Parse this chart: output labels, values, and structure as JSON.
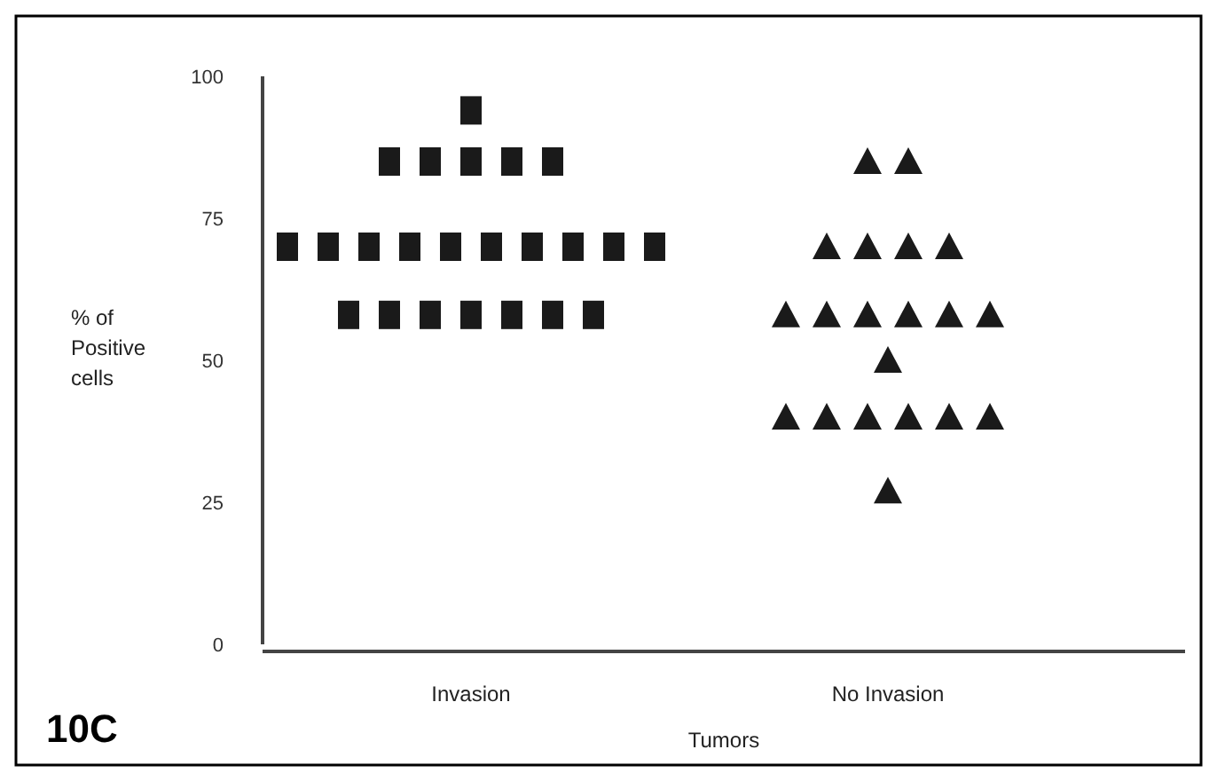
{
  "chart_data": {
    "type": "scatter",
    "ylabel": "% of Positive cells",
    "xlabel": "Tumors",
    "annotations": [
      "10C"
    ],
    "categories": [
      "Invasion",
      "No Invasion"
    ],
    "ylim": [
      0,
      100
    ],
    "yticks": [
      0,
      25,
      50,
      75,
      100
    ],
    "grid": false,
    "series": [
      {
        "marker": "square",
        "color": "#1a1a1a",
        "x": [
          "Invasion",
          "Invasion",
          "Invasion",
          "Invasion",
          "Invasion",
          "Invasion",
          "Invasion",
          "Invasion",
          "Invasion",
          "Invasion",
          "Invasion",
          "Invasion",
          "Invasion",
          "Invasion",
          "Invasion",
          "Invasion",
          "Invasion",
          "Invasion",
          "Invasion",
          "Invasion",
          "Invasion",
          "Invasion",
          "Invasion"
        ],
        "values": [
          94,
          85,
          85,
          85,
          85,
          85,
          70,
          70,
          70,
          70,
          70,
          70,
          70,
          70,
          70,
          70,
          58,
          58,
          58,
          58,
          58,
          58,
          58
        ]
      },
      {
        "marker": "triangle",
        "color": "#1a1a1a",
        "x": [
          "No Invasion",
          "No Invasion",
          "No Invasion",
          "No Invasion",
          "No Invasion",
          "No Invasion",
          "No Invasion",
          "No Invasion",
          "No Invasion",
          "No Invasion",
          "No Invasion",
          "No Invasion",
          "No Invasion",
          "No Invasion",
          "No Invasion",
          "No Invasion",
          "No Invasion",
          "No Invasion",
          "No Invasion",
          "No Invasion"
        ],
        "values": [
          85,
          85,
          70,
          70,
          70,
          70,
          58,
          58,
          58,
          58,
          58,
          58,
          50,
          40,
          40,
          40,
          40,
          40,
          40,
          27
        ]
      }
    ]
  }
}
